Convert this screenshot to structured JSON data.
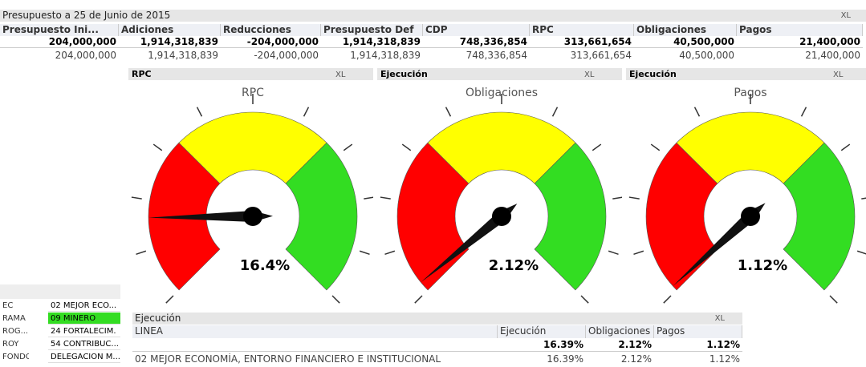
{
  "top_table": {
    "title": "Presupuesto a 25 de Junio de 2015",
    "headers": [
      "Presupuesto Ini...",
      "Adiciones",
      "Reducciones",
      "Presupuesto Def",
      "CDP",
      "RPC",
      "Obligaciones",
      "Pagos"
    ],
    "totals": [
      "204,000,000",
      "1,914,318,839",
      "-204,000,000",
      "1,914,318,839",
      "748,336,854",
      "313,661,654",
      "40,500,000",
      "21,400,000"
    ],
    "rows": [
      [
        "204,000,000",
        "1,914,318,839",
        "-204,000,000",
        "1,914,318,839",
        "748,336,854",
        "313,661,654",
        "40,500,000",
        "21,400,000"
      ]
    ]
  },
  "xl_label": "XL",
  "gauges": [
    {
      "caption": "RPC",
      "title": "RPC",
      "value": 16.4,
      "value_label": "16.4%"
    },
    {
      "caption": "Ejecución",
      "title": "Obligaciones",
      "value": 2.12,
      "value_label": "2.12%"
    },
    {
      "caption": "Ejecución",
      "title": "Pagos",
      "value": 1.12,
      "value_label": "1.12%"
    }
  ],
  "gauge_range": [
    0,
    100
  ],
  "gauge_bands": [
    {
      "to": 33.3,
      "color": "#ff0000"
    },
    {
      "to": 66.7,
      "color": "#ffff00"
    },
    {
      "to": 100,
      "color": "#33dd22"
    }
  ],
  "filters": [
    {
      "label": "EC",
      "value": "02 MEJOR ECO..."
    },
    {
      "label": "RAMA",
      "value": "09 MINERO",
      "selected": true
    },
    {
      "label": "ROG...",
      "value": "24 FORTALECIM."
    },
    {
      "label": "ROY",
      "value": "54 CONTRIBUC..."
    },
    {
      "label": "FONDO",
      "value": "DELEGACION M..."
    }
  ],
  "bottom_table": {
    "title": "Ejecución",
    "headers": [
      "LINEA",
      "Ejecución",
      "Obligaciones",
      "Pagos"
    ],
    "totals": [
      "",
      "16.39%",
      "2.12%",
      "1.12%"
    ],
    "rows": [
      [
        "02 MEJOR ECONOMÍA, ENTORNO FINANCIERO E INSTITUCIONAL",
        "16.39%",
        "2.12%",
        "1.12%"
      ]
    ]
  }
}
